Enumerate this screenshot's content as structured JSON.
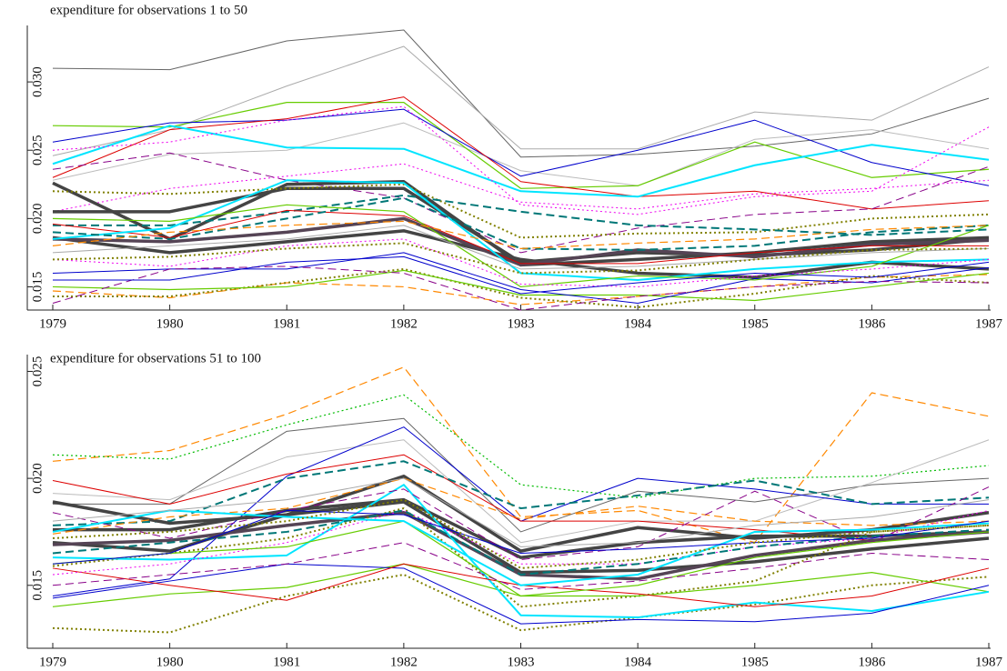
{
  "chart_data": [
    {
      "type": "line",
      "title": "expenditure for observations 1 to 50",
      "x": [
        1979,
        1980,
        1981,
        1982,
        1983,
        1984,
        1985,
        1986,
        1987
      ],
      "xlim": [
        1979,
        1987
      ],
      "xticks": [
        1979,
        1980,
        1981,
        1982,
        1983,
        1984,
        1985,
        1986,
        1987
      ],
      "ylim": [
        0.0135,
        0.034
      ],
      "yticks": [
        0.015,
        {
          "value": 0.02,
          "label": "0.020"
        },
        0.025,
        {
          "value": 0.03,
          "label": "0.030"
        }
      ],
      "series": [
        {
          "color": "#666666",
          "width": 1,
          "style": "solid",
          "values": [
            0.031,
            0.0309,
            0.033,
            0.0338,
            0.0245,
            0.0247,
            0.0253,
            0.0262,
            0.0288
          ]
        },
        {
          "color": "#aaaaaa",
          "width": 1,
          "style": "solid",
          "values": [
            0.0246,
            0.0265,
            0.0297,
            0.0326,
            0.0251,
            0.0251,
            0.0278,
            0.0272,
            0.0311
          ]
        },
        {
          "color": "#bbbbbb",
          "width": 1,
          "style": "solid",
          "values": [
            0.0228,
            0.0247,
            0.025,
            0.027,
            0.0235,
            0.0224,
            0.0258,
            0.0265,
            0.0251
          ]
        },
        {
          "color": "#66cc00",
          "width": 1.2,
          "style": "solid",
          "values": [
            0.0268,
            0.0267,
            0.0285,
            0.0285,
            0.0222,
            0.0224,
            0.0256,
            0.023,
            0.0236
          ]
        },
        {
          "color": "#0000cc",
          "width": 1,
          "style": "solid",
          "values": [
            0.0256,
            0.027,
            0.0272,
            0.028,
            0.0231,
            0.025,
            0.0272,
            0.0241,
            0.0224
          ]
        },
        {
          "color": "#dd0000",
          "width": 1,
          "style": "solid",
          "values": [
            0.023,
            0.0265,
            0.0273,
            0.0289,
            0.0227,
            0.0216,
            0.022,
            0.0207,
            0.0213
          ]
        },
        {
          "color": "#00e5ff",
          "width": 2,
          "style": "solid",
          "values": [
            0.024,
            0.0268,
            0.0252,
            0.0251,
            0.022,
            0.0216,
            0.0239,
            0.0254,
            0.0243
          ]
        },
        {
          "color": "#ee00ee",
          "width": 1,
          "style": "dotted",
          "values": [
            0.025,
            0.0256,
            0.0272,
            0.0282,
            0.021,
            0.0203,
            0.0216,
            0.022,
            0.0267
          ]
        },
        {
          "color": "#ee00ee",
          "width": 1,
          "style": "dotted",
          "values": [
            0.0205,
            0.0222,
            0.0231,
            0.024,
            0.0212,
            0.0207,
            0.0218,
            0.0222,
            0.0228
          ]
        },
        {
          "color": "#880088",
          "width": 1,
          "style": "dashed",
          "values": [
            0.0236,
            0.0248,
            0.0228,
            0.0215,
            0.0175,
            0.0193,
            0.0203,
            0.0207,
            0.0238
          ]
        },
        {
          "color": "#444444",
          "width": 3.5,
          "style": "solid",
          "values": [
            0.0226,
            0.0185,
            0.0225,
            0.0227,
            0.0166,
            0.017,
            0.0175,
            0.0183,
            0.0186
          ]
        },
        {
          "color": "#444444",
          "width": 3.5,
          "style": "solid",
          "values": [
            0.0205,
            0.0205,
            0.0222,
            0.0222,
            0.0168,
            0.0175,
            0.0173,
            0.0177,
            0.0185
          ]
        },
        {
          "color": "#444444",
          "width": 3.5,
          "style": "solid",
          "values": [
            0.0186,
            0.0175,
            0.0183,
            0.0191,
            0.017,
            0.016,
            0.0157,
            0.0168,
            0.0163
          ]
        },
        {
          "color": "#554455",
          "width": 3.5,
          "style": "solid",
          "values": [
            0.0185,
            0.0183,
            0.019,
            0.02,
            0.0166,
            0.0177,
            0.0172,
            0.0181,
            0.0184
          ]
        },
        {
          "color": "#808000",
          "width": 2,
          "style": "dotted",
          "values": [
            0.022,
            0.0218,
            0.0222,
            0.0225,
            0.0186,
            0.0189,
            0.019,
            0.02,
            0.0203
          ]
        },
        {
          "color": "#007777",
          "width": 2,
          "style": "dashed",
          "values": [
            0.0195,
            0.0195,
            0.0205,
            0.0217,
            0.0205,
            0.0195,
            0.0192,
            0.0188,
            0.0192
          ]
        },
        {
          "color": "#ff8800",
          "width": 1.2,
          "style": "dashed",
          "values": [
            0.0147,
            0.0142,
            0.0153,
            0.015,
            0.0137,
            0.0143,
            0.015,
            0.0157,
            0.0159
          ]
        },
        {
          "color": "#808000",
          "width": 2,
          "style": "dotted",
          "values": [
            0.0143,
            0.0143,
            0.0153,
            0.0163,
            0.0142,
            0.0135,
            0.0145,
            0.0158,
            0.0153
          ]
        },
        {
          "color": "#66cc00",
          "width": 1.2,
          "style": "solid",
          "values": [
            0.015,
            0.0148,
            0.015,
            0.0162,
            0.0144,
            0.0144,
            0.014,
            0.015,
            0.016
          ]
        },
        {
          "color": "#0000cc",
          "width": 1,
          "style": "solid",
          "values": [
            0.016,
            0.0163,
            0.0163,
            0.0175,
            0.0148,
            0.0138,
            0.0156,
            0.0153,
            0.0164
          ]
        },
        {
          "color": "#880088",
          "width": 1,
          "style": "dashed",
          "values": [
            0.0138,
            0.0163,
            0.0165,
            0.016,
            0.0133,
            0.0143,
            0.015,
            0.0154,
            0.0153
          ]
        },
        {
          "color": "#dd0000",
          "width": 1,
          "style": "solid",
          "values": [
            0.0196,
            0.0186,
            0.0206,
            0.0202,
            0.0167,
            0.0167,
            0.0175,
            0.018,
            0.018
          ]
        },
        {
          "color": "#00e5ff",
          "width": 2,
          "style": "solid",
          "values": [
            0.0185,
            0.0193,
            0.0228,
            0.0226,
            0.016,
            0.0155,
            0.0163,
            0.0168,
            0.017
          ]
        },
        {
          "color": "#007777",
          "width": 2,
          "style": "dashed",
          "values": [
            0.019,
            0.0185,
            0.02,
            0.0215,
            0.0178,
            0.0177,
            0.018,
            0.019,
            0.0195
          ]
        },
        {
          "color": "#66cc00",
          "width": 1.2,
          "style": "solid",
          "values": [
            0.02,
            0.0198,
            0.021,
            0.0205,
            0.015,
            0.0158,
            0.0155,
            0.0165,
            0.0195
          ]
        },
        {
          "color": "#ff8800",
          "width": 1.2,
          "style": "dashed",
          "values": [
            0.018,
            0.019,
            0.0195,
            0.0198,
            0.0178,
            0.0182,
            0.0185,
            0.0192,
            0.0195
          ]
        },
        {
          "color": "#aaaaaa",
          "width": 1,
          "style": "solid",
          "values": [
            0.0175,
            0.018,
            0.0185,
            0.0195,
            0.0163,
            0.0165,
            0.017,
            0.0175,
            0.0178
          ]
        },
        {
          "color": "#ee00ee",
          "width": 1,
          "style": "dotted",
          "values": [
            0.017,
            0.0165,
            0.018,
            0.0185,
            0.0152,
            0.015,
            0.0158,
            0.0163,
            0.017
          ]
        },
        {
          "color": "#0000cc",
          "width": 1,
          "style": "solid",
          "values": [
            0.0155,
            0.0155,
            0.0168,
            0.0172,
            0.0145,
            0.0153,
            0.016,
            0.0157,
            0.0168
          ]
        },
        {
          "color": "#808000",
          "width": 2,
          "style": "dotted",
          "values": [
            0.017,
            0.0172,
            0.0178,
            0.0182,
            0.016,
            0.0162,
            0.017,
            0.0177,
            0.0178
          ]
        }
      ]
    },
    {
      "type": "line",
      "title": "expenditure for observations 51 to 100",
      "x": [
        1979,
        1980,
        1981,
        1982,
        1983,
        1984,
        1985,
        1986,
        1987
      ],
      "xlim": [
        1979,
        1987
      ],
      "xticks": [
        1979,
        1980,
        1981,
        1982,
        1983,
        1984,
        1985,
        1986,
        1987
      ],
      "ylim": [
        0.0121,
        0.0257
      ],
      "yticks": [
        0.015,
        {
          "value": 0.02,
          "label": "0.020"
        },
        0.025
      ],
      "series": [
        {
          "color": "#ff8800",
          "width": 1.2,
          "style": "dashed",
          "values": [
            0.0208,
            0.0213,
            0.023,
            0.0252,
            0.0182,
            0.0185,
            0.017,
            0.024,
            0.0229
          ]
        },
        {
          "color": "#00bb00",
          "width": 1.2,
          "style": "dotted",
          "values": [
            0.0211,
            0.0209,
            0.0225,
            0.0239,
            0.0197,
            0.0191,
            0.02,
            0.0201,
            0.0206
          ]
        },
        {
          "color": "#666666",
          "width": 1,
          "style": "solid",
          "values": [
            0.0188,
            0.0188,
            0.0222,
            0.0228,
            0.0175,
            0.0194,
            0.0189,
            0.0197,
            0.02
          ]
        },
        {
          "color": "#bbbbbb",
          "width": 1,
          "style": "solid",
          "values": [
            0.0193,
            0.019,
            0.021,
            0.0218,
            0.017,
            0.018,
            0.018,
            0.0198,
            0.0218
          ]
        },
        {
          "color": "#0000cc",
          "width": 1,
          "style": "solid",
          "values": [
            0.0145,
            0.0153,
            0.0201,
            0.0224,
            0.018,
            0.02,
            0.0195,
            0.0188,
            0.0188
          ]
        },
        {
          "color": "#dd0000",
          "width": 1,
          "style": "solid",
          "values": [
            0.0199,
            0.0188,
            0.0202,
            0.0211,
            0.018,
            0.018,
            0.0176,
            0.0171,
            0.0175
          ]
        },
        {
          "color": "#007777",
          "width": 2,
          "style": "dashed",
          "values": [
            0.0178,
            0.018,
            0.02,
            0.0208,
            0.0186,
            0.0192,
            0.0199,
            0.0188,
            0.0191
          ]
        },
        {
          "color": "#444444",
          "width": 3.5,
          "style": "solid",
          "values": [
            0.0189,
            0.0179,
            0.0183,
            0.0201,
            0.0166,
            0.0177,
            0.0172,
            0.0176,
            0.0184
          ]
        },
        {
          "color": "#444444",
          "width": 3.5,
          "style": "solid",
          "values": [
            0.0176,
            0.0176,
            0.0185,
            0.019,
            0.0163,
            0.017,
            0.0173,
            0.0173,
            0.0175
          ]
        },
        {
          "color": "#444444",
          "width": 3.5,
          "style": "solid",
          "values": [
            0.017,
            0.0166,
            0.0183,
            0.0189,
            0.0156,
            0.0157,
            0.0161,
            0.0167,
            0.0172
          ]
        },
        {
          "color": "#554455",
          "width": 3.5,
          "style": "solid",
          "values": [
            0.0169,
            0.0171,
            0.0178,
            0.0184,
            0.0155,
            0.0153,
            0.0164,
            0.0171,
            0.0175
          ]
        },
        {
          "color": "#808000",
          "width": 2,
          "style": "dotted",
          "values": [
            0.013,
            0.0128,
            0.0145,
            0.0155,
            0.0129,
            0.0135,
            0.0141,
            0.015,
            0.0154
          ]
        },
        {
          "color": "#808000",
          "width": 2,
          "style": "dotted",
          "values": [
            0.0159,
            0.0165,
            0.0172,
            0.0186,
            0.014,
            0.0145,
            0.0152,
            0.0175,
            0.0178
          ]
        },
        {
          "color": "#66cc00",
          "width": 1.2,
          "style": "solid",
          "values": [
            0.014,
            0.0146,
            0.0149,
            0.016,
            0.0145,
            0.0145,
            0.015,
            0.0156,
            0.0147
          ]
        },
        {
          "color": "#00e5ff",
          "width": 2,
          "style": "solid",
          "values": [
            0.0163,
            0.0162,
            0.0164,
            0.0197,
            0.0136,
            0.0135,
            0.0142,
            0.0138,
            0.0147
          ]
        },
        {
          "color": "#0000cc",
          "width": 1,
          "style": "solid",
          "values": [
            0.0144,
            0.0152,
            0.016,
            0.0158,
            0.0132,
            0.0134,
            0.0133,
            0.0137,
            0.015
          ]
        },
        {
          "color": "#dd0000",
          "width": 1,
          "style": "solid",
          "values": [
            0.0158,
            0.015,
            0.0143,
            0.016,
            0.015,
            0.0146,
            0.014,
            0.0145,
            0.0158
          ]
        },
        {
          "color": "#ff8800",
          "width": 1.2,
          "style": "dashed",
          "values": [
            0.0174,
            0.0182,
            0.0186,
            0.02,
            0.0181,
            0.0187,
            0.018,
            0.0178,
            0.018
          ]
        },
        {
          "color": "#ee00ee",
          "width": 1,
          "style": "dotted",
          "values": [
            0.0155,
            0.016,
            0.017,
            0.0185,
            0.016,
            0.016,
            0.0168,
            0.0172,
            0.0185
          ]
        },
        {
          "color": "#880088",
          "width": 1,
          "style": "dashed",
          "values": [
            0.0184,
            0.0172,
            0.0185,
            0.0195,
            0.0162,
            0.0168,
            0.0194,
            0.017,
            0.0196
          ]
        },
        {
          "color": "#66cc00",
          "width": 1.2,
          "style": "solid",
          "values": [
            0.016,
            0.0165,
            0.0168,
            0.018,
            0.0145,
            0.015,
            0.0163,
            0.017,
            0.0175
          ]
        },
        {
          "color": "#007777",
          "width": 2,
          "style": "dashed",
          "values": [
            0.0165,
            0.017,
            0.0175,
            0.0185,
            0.0155,
            0.016,
            0.0168,
            0.0173,
            0.0176
          ]
        },
        {
          "color": "#00e5ff",
          "width": 2,
          "style": "solid",
          "values": [
            0.0175,
            0.0185,
            0.0182,
            0.018,
            0.015,
            0.0155,
            0.0175,
            0.0176,
            0.0179
          ]
        },
        {
          "color": "#aaaaaa",
          "width": 1,
          "style": "solid",
          "values": [
            0.018,
            0.0185,
            0.019,
            0.02,
            0.0168,
            0.017,
            0.0178,
            0.0182,
            0.019
          ]
        },
        {
          "color": "#880088",
          "width": 1,
          "style": "dashed",
          "values": [
            0.015,
            0.0155,
            0.016,
            0.017,
            0.0148,
            0.0152,
            0.0158,
            0.0165,
            0.0162
          ]
        },
        {
          "color": "#0000cc",
          "width": 1,
          "style": "solid",
          "values": [
            0.016,
            0.0165,
            0.0185,
            0.0183,
            0.0165,
            0.0167,
            0.017,
            0.0172,
            0.018
          ]
        },
        {
          "color": "#808000",
          "width": 2,
          "style": "dotted",
          "values": [
            0.0172,
            0.0175,
            0.018,
            0.019,
            0.0158,
            0.0162,
            0.017,
            0.0175,
            0.0178
          ]
        }
      ]
    }
  ]
}
